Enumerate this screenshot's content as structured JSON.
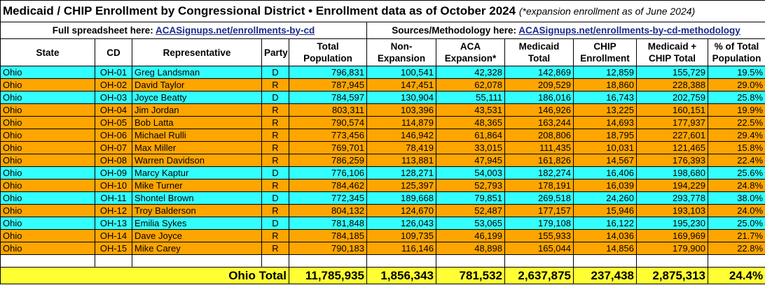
{
  "header": {
    "title": "Medicaid / CHIP Enrollment by Congressional District • Enrollment data as of October 2024",
    "note": "(*expansion enrollment as of June 2024)"
  },
  "links": {
    "left_label": "Full spreadsheet here:",
    "left_url": "ACASignups.net/enrollments-by-cd",
    "right_label": "Sources/Methodology here:",
    "right_url": "ACASignups.net/enrollments-by-cd-methodology"
  },
  "table": {
    "columns": [
      "State",
      "CD",
      "Representative",
      "Party",
      "Total Population",
      "Non-Expansion",
      "ACA Expansion*",
      "Medicaid Total",
      "CHIP Enrollment",
      "Medicaid + CHIP Total",
      "% of Total Population"
    ],
    "row_colors": {
      "D": "#33ffff",
      "R": "#ffa500"
    },
    "rows": [
      [
        "Ohio",
        "OH-01",
        "Greg Landsman",
        "D",
        "796,831",
        "100,541",
        "42,328",
        "142,869",
        "12,859",
        "155,729",
        "19.5%"
      ],
      [
        "Ohio",
        "OH-02",
        "David Taylor",
        "R",
        "787,945",
        "147,451",
        "62,078",
        "209,529",
        "18,860",
        "228,388",
        "29.0%"
      ],
      [
        "Ohio",
        "OH-03",
        "Joyce Beatty",
        "D",
        "784,597",
        "130,904",
        "55,111",
        "186,016",
        "16,743",
        "202,759",
        "25.8%"
      ],
      [
        "Ohio",
        "OH-04",
        "Jim Jordan",
        "R",
        "803,311",
        "103,396",
        "43,531",
        "146,926",
        "13,225",
        "160,151",
        "19.9%"
      ],
      [
        "Ohio",
        "OH-05",
        "Bob Latta",
        "R",
        "790,574",
        "114,879",
        "48,365",
        "163,244",
        "14,693",
        "177,937",
        "22.5%"
      ],
      [
        "Ohio",
        "OH-06",
        "Michael Rulli",
        "R",
        "773,456",
        "146,942",
        "61,864",
        "208,806",
        "18,795",
        "227,601",
        "29.4%"
      ],
      [
        "Ohio",
        "OH-07",
        "Max Miller",
        "R",
        "769,701",
        "78,419",
        "33,015",
        "111,435",
        "10,031",
        "121,465",
        "15.8%"
      ],
      [
        "Ohio",
        "OH-08",
        "Warren Davidson",
        "R",
        "786,259",
        "113,881",
        "47,945",
        "161,826",
        "14,567",
        "176,393",
        "22.4%"
      ],
      [
        "Ohio",
        "OH-09",
        "Marcy Kaptur",
        "D",
        "776,106",
        "128,271",
        "54,003",
        "182,274",
        "16,406",
        "198,680",
        "25.6%"
      ],
      [
        "Ohio",
        "OH-10",
        "Mike Turner",
        "R",
        "784,462",
        "125,397",
        "52,793",
        "178,191",
        "16,039",
        "194,229",
        "24.8%"
      ],
      [
        "Ohio",
        "OH-11",
        "Shontel Brown",
        "D",
        "772,345",
        "189,668",
        "79,851",
        "269,518",
        "24,260",
        "293,778",
        "38.0%"
      ],
      [
        "Ohio",
        "OH-12",
        "Troy Balderson",
        "R",
        "804,132",
        "124,670",
        "52,487",
        "177,157",
        "15,946",
        "193,103",
        "24.0%"
      ],
      [
        "Ohio",
        "OH-13",
        "Emilia Sykes",
        "D",
        "781,848",
        "126,043",
        "53,065",
        "179,108",
        "16,122",
        "195,230",
        "25.0%"
      ],
      [
        "Ohio",
        "OH-14",
        "Dave Joyce",
        "R",
        "784,185",
        "109,735",
        "46,199",
        "155,933",
        "14,036",
        "169,969",
        "21.7%"
      ],
      [
        "Ohio",
        "OH-15",
        "Mike Carey",
        "R",
        "790,183",
        "116,146",
        "48,898",
        "165,044",
        "14,856",
        "179,900",
        "22.8%"
      ]
    ],
    "total": {
      "label": "Ohio Total",
      "values": [
        "11,785,935",
        "1,856,343",
        "781,532",
        "2,637,875",
        "237,438",
        "2,875,313",
        "24.4%"
      ],
      "color": "#ffff33"
    }
  }
}
